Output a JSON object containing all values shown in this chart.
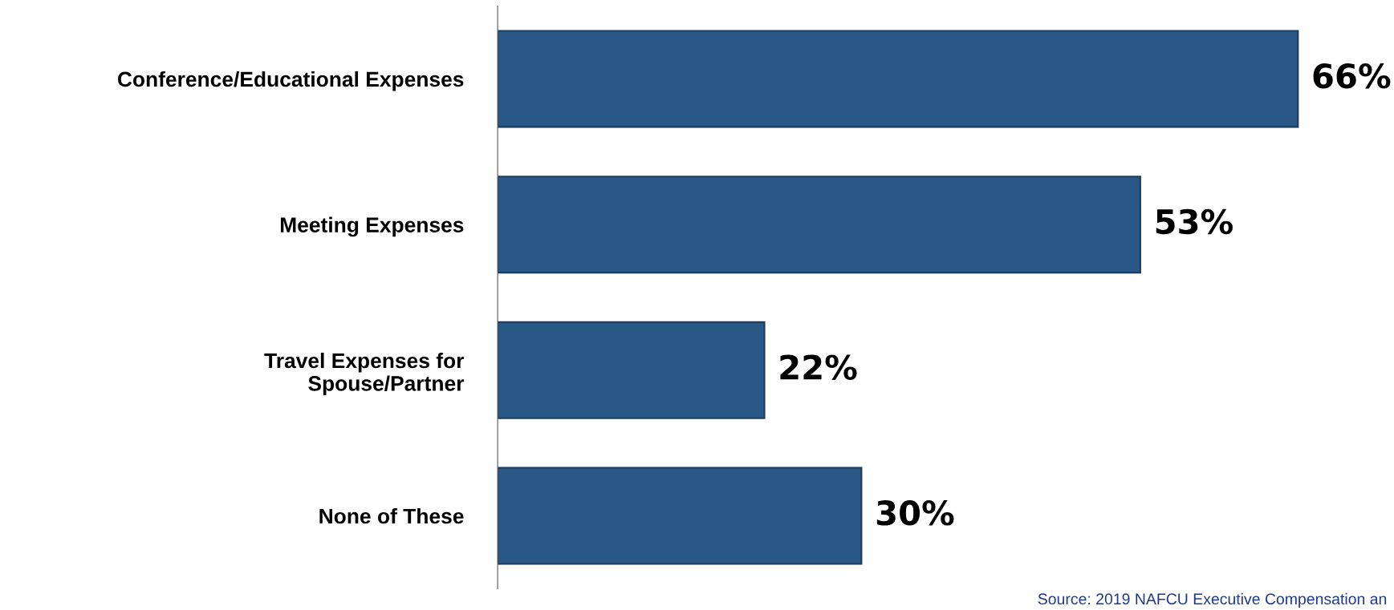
{
  "chart_data": {
    "type": "bar",
    "orientation": "horizontal",
    "categories": [
      "Conference/Educational Expenses",
      "Meeting Expenses",
      "Travel Expenses for\nSpouse/Partner",
      "None of These"
    ],
    "values": [
      66,
      53,
      22,
      30
    ],
    "value_labels": [
      "66%",
      "53%",
      "22%",
      "30%"
    ],
    "color": "#2a5886",
    "tick_labels": "y",
    "grid": false,
    "legend": false,
    "annotations": [
      "Source: 2019 NAFCU Executive Compensation an"
    ]
  }
}
